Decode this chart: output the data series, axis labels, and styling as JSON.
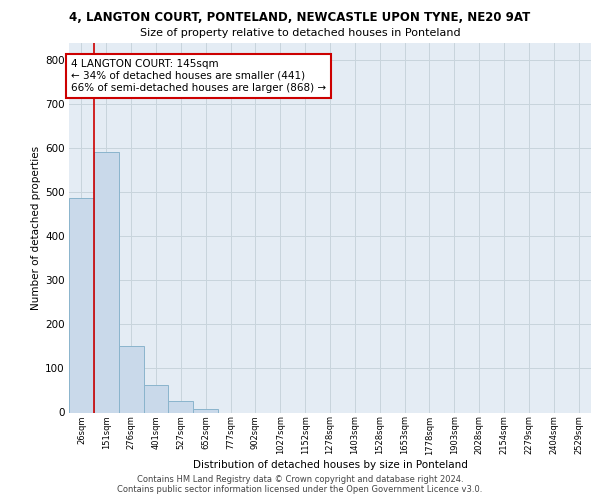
{
  "title1": "4, LANGTON COURT, PONTELAND, NEWCASTLE UPON TYNE, NE20 9AT",
  "title2": "Size of property relative to detached houses in Ponteland",
  "xlabel": "Distribution of detached houses by size in Ponteland",
  "ylabel": "Number of detached properties",
  "footnote1": "Contains HM Land Registry data © Crown copyright and database right 2024.",
  "footnote2": "Contains public sector information licensed under the Open Government Licence v3.0.",
  "bar_labels": [
    "26sqm",
    "151sqm",
    "276sqm",
    "401sqm",
    "527sqm",
    "652sqm",
    "777sqm",
    "902sqm",
    "1027sqm",
    "1152sqm",
    "1278sqm",
    "1403sqm",
    "1528sqm",
    "1653sqm",
    "1778sqm",
    "1903sqm",
    "2028sqm",
    "2154sqm",
    "2279sqm",
    "2404sqm",
    "2529sqm"
  ],
  "bar_heights": [
    487,
    591,
    150,
    62,
    26,
    8,
    0,
    0,
    0,
    0,
    0,
    0,
    0,
    0,
    0,
    0,
    0,
    0,
    0,
    0,
    0
  ],
  "bar_color": "#c9d9ea",
  "bar_edgecolor": "#8ab4cc",
  "grid_color": "#c8d4dc",
  "bg_color": "#e4ecf4",
  "vline_color": "#cc0000",
  "annotation_text": "4 LANGTON COURT: 145sqm\n← 34% of detached houses are smaller (441)\n66% of semi-detached houses are larger (868) →",
  "annotation_box_edgecolor": "#cc0000",
  "ylim": [
    0,
    840
  ],
  "yticks": [
    0,
    100,
    200,
    300,
    400,
    500,
    600,
    700,
    800
  ]
}
